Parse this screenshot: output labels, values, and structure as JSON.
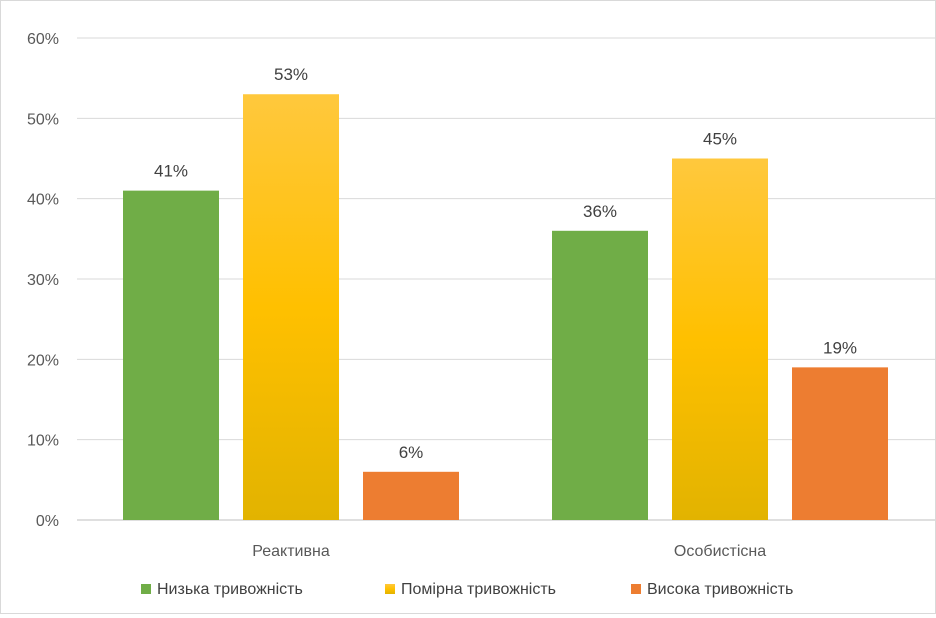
{
  "chart_data": {
    "type": "bar",
    "title": "",
    "xlabel": "",
    "ylabel": "",
    "ylim": [
      0,
      60
    ],
    "yticks": [
      "0%",
      "10%",
      "20%",
      "30%",
      "40%",
      "50%",
      "60%"
    ],
    "grid": true,
    "legend_position": "bottom",
    "categories": [
      "Реактивна",
      "Особистісна"
    ],
    "series": [
      {
        "name": "Низька тривожність",
        "values": [
          41,
          36
        ],
        "labels": [
          "41%",
          "36%"
        ],
        "color": "#70ad47",
        "gradient": false
      },
      {
        "name": "Помірна тривожність",
        "values": [
          53,
          45
        ],
        "labels": [
          "53%",
          "45%"
        ],
        "color": "#ffc000",
        "gradient": true
      },
      {
        "name": "Висока тривожність",
        "values": [
          6,
          19
        ],
        "labels": [
          "6%",
          "19%"
        ],
        "color": "#ed7d31",
        "gradient": false
      }
    ]
  }
}
